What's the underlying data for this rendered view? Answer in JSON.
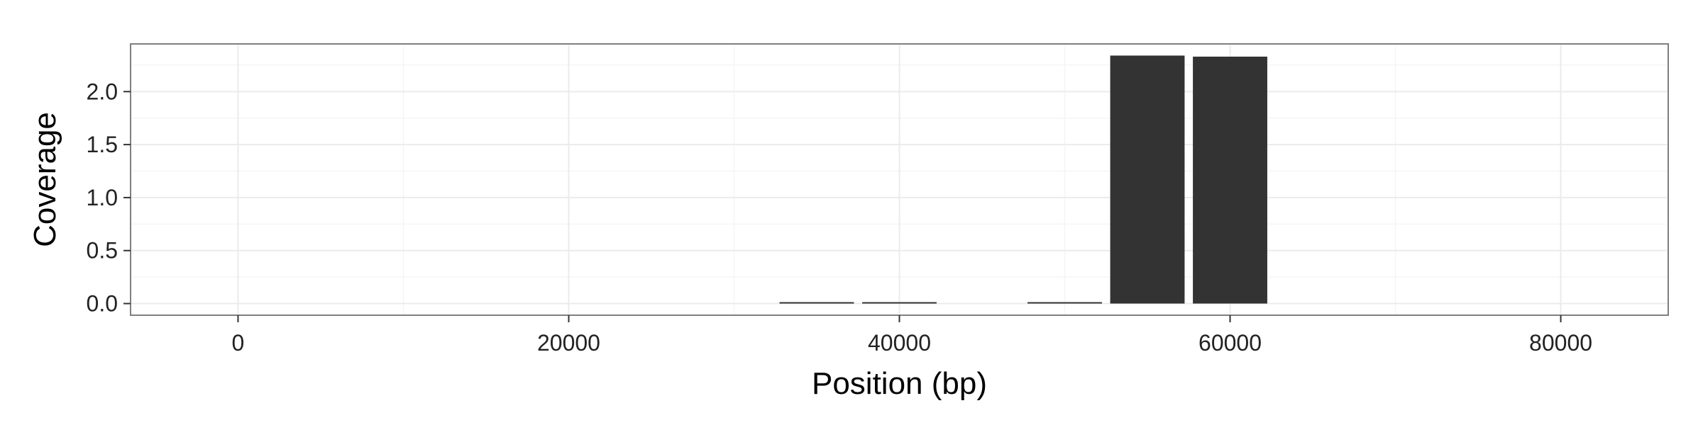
{
  "chart_data": {
    "type": "bar",
    "title": "",
    "xlabel": "Position (bp)",
    "ylabel": "Coverage",
    "x": [
      35000,
      40000,
      50000,
      55000,
      60000
    ],
    "values": [
      0.01,
      0.01,
      0.01,
      2.34,
      2.33
    ],
    "bar_width": 4500,
    "xlim": [
      -6500,
      86500
    ],
    "ylim": [
      -0.11,
      2.45
    ],
    "x_ticks": [
      0,
      20000,
      40000,
      60000,
      80000
    ],
    "x_tick_labels": [
      "0",
      "20000",
      "40000",
      "60000",
      "80000"
    ],
    "y_ticks": [
      0.0,
      0.5,
      1.0,
      1.5,
      2.0
    ],
    "y_tick_labels": [
      "0.0",
      "0.5",
      "1.0",
      "1.5",
      "2.0"
    ],
    "grid": true,
    "legend": "none",
    "colors": {
      "bar": "#333333",
      "panel_border": "#7f7f7f",
      "grid_major": "#ebebeb",
      "grid_minor": "#f5f5f5",
      "axis_text": "#222222"
    }
  }
}
